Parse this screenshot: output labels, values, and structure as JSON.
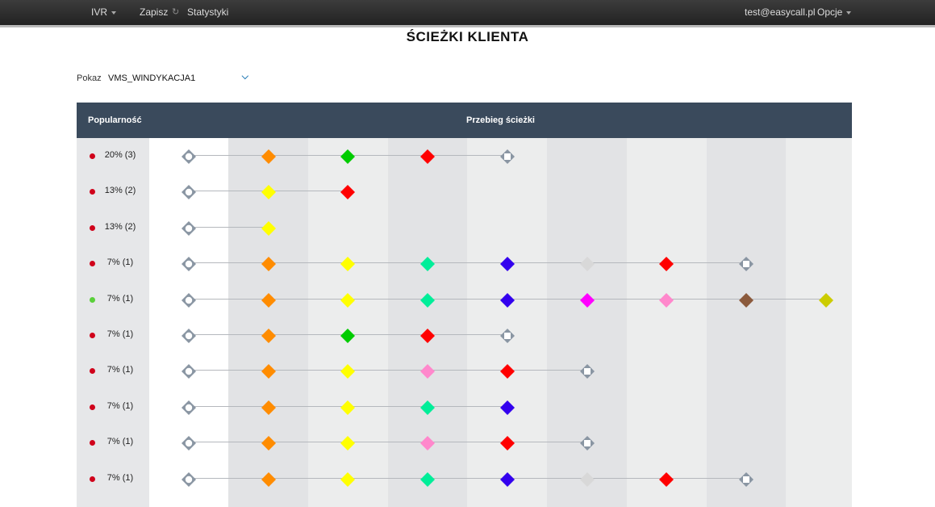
{
  "navbar": {
    "ivr_label": "IVR",
    "save_label": "Zapisz",
    "stats_label": "Statystyki",
    "user_email": "test@easycall.pl",
    "options_label": "Opcje",
    "icons": [
      "chevron-down-icon",
      "refresh-icon"
    ]
  },
  "page": {
    "title": "ŚCIEŻKI KLIENTA"
  },
  "filter": {
    "label": "Pokaz",
    "selected": "VMS_WINDYKACJA1"
  },
  "table": {
    "col_popularity": "Popularność",
    "col_path": "Przebieg ścieżki",
    "rows": [
      {
        "label": "20% (3)",
        "status": "#d0021b",
        "nodes": [
          "start",
          "#ff8c00",
          "#00cc00",
          "#ff0000",
          "end"
        ]
      },
      {
        "label": "13% (2)",
        "status": "#d0021b",
        "nodes": [
          "start",
          "#ffff00",
          "#ff0000"
        ]
      },
      {
        "label": "13% (2)",
        "status": "#d0021b",
        "nodes": [
          "start",
          "#ffff00"
        ]
      },
      {
        "label": "7% (1)",
        "status": "#d0021b",
        "nodes": [
          "start",
          "#ff8c00",
          "#ffff00",
          "#00ee99",
          "#3300ee",
          "#d8d8d8",
          "#ff0000",
          "end"
        ]
      },
      {
        "label": "7% (1)",
        "status": "#5ad03a",
        "nodes": [
          "start",
          "#ff8c00",
          "#ffff00",
          "#00ee99",
          "#3300ee",
          "#ff00ff",
          "#ff88cc",
          "#8b5a3c",
          "#cccc00"
        ]
      },
      {
        "label": "7% (1)",
        "status": "#d0021b",
        "nodes": [
          "start",
          "#ff8c00",
          "#00cc00",
          "#ff0000",
          "end"
        ]
      },
      {
        "label": "7% (1)",
        "status": "#d0021b",
        "nodes": [
          "start",
          "#ff8c00",
          "#ffff00",
          "#ff88cc",
          "#ff0000",
          "end"
        ]
      },
      {
        "label": "7% (1)",
        "status": "#d0021b",
        "nodes": [
          "start",
          "#ff8c00",
          "#ffff00",
          "#00ee99",
          "#3300ee"
        ]
      },
      {
        "label": "7% (1)",
        "status": "#d0021b",
        "nodes": [
          "start",
          "#ff8c00",
          "#ffff00",
          "#ff88cc",
          "#ff0000",
          "end"
        ]
      },
      {
        "label": "7% (1)",
        "status": "#d0021b",
        "nodes": [
          "start",
          "#ff8c00",
          "#ffff00",
          "#00ee99",
          "#3300ee",
          "#d8d8d8",
          "#ff0000",
          "end"
        ]
      },
      {
        "label": "",
        "status": "",
        "nodes": [
          "start",
          "#ff8c00",
          "#ffff00",
          "#00ee99",
          "#3300ee",
          "#ff00ff",
          "#ff88cc",
          "#8b5a3c",
          "#ff0000"
        ]
      }
    ]
  },
  "colors": {
    "header_bg": "#3a4a5c",
    "node_outline": "#8a96a3"
  }
}
